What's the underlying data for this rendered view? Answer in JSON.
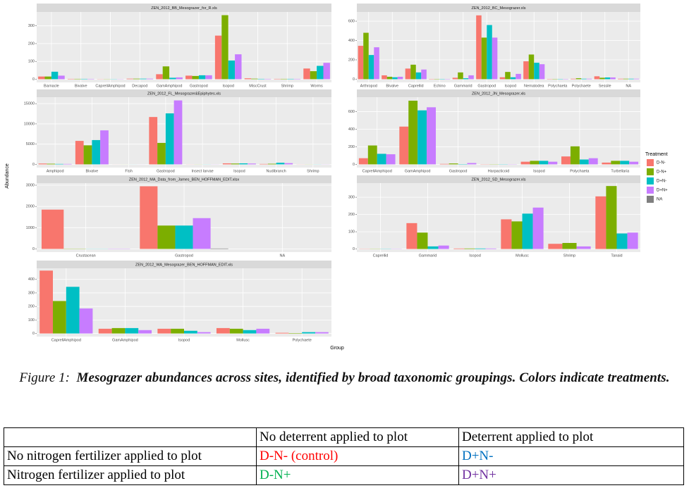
{
  "chart_data": [
    {
      "type": "bar",
      "title": "ZEN_2012_BB_Mesograzer_for_R.xls",
      "categories": [
        "Barnacle",
        "Bivalve",
        "CaprellAmphipod",
        "Decapod",
        "GamAmphipod",
        "Gastropod",
        "Isopod",
        "MiscCrust",
        "Shrimp",
        "Worms"
      ],
      "series": [
        {
          "values": [
            15,
            2,
            1,
            3,
            28,
            20,
            245,
            5,
            2,
            60
          ]
        },
        {
          "values": [
            15,
            2,
            1,
            3,
            72,
            18,
            360,
            3,
            2,
            45
          ]
        },
        {
          "values": [
            42,
            2,
            1,
            3,
            8,
            22,
            105,
            2,
            2,
            75
          ]
        },
        {
          "values": [
            20,
            2,
            1,
            3,
            10,
            22,
            140,
            2,
            2,
            92
          ]
        },
        {
          "values": [
            null,
            null,
            null,
            null,
            null,
            null,
            null,
            null,
            null,
            null
          ]
        }
      ],
      "ylim": [
        -18,
        378
      ],
      "yticks": [
        0,
        100,
        200,
        300
      ]
    },
    {
      "type": "bar",
      "title": "ZEN_2012_BC_Mesograzer.xls",
      "categories": [
        "Arthropod",
        "Bivalve",
        "Caprellid",
        "Echino",
        "Gammarid",
        "Gastropod",
        "Isopod",
        "Nematodea",
        "Polychaeta",
        "Polychaete",
        "Sessile",
        "NA"
      ],
      "series": [
        {
          "values": [
            345,
            40,
            110,
            3,
            15,
            660,
            20,
            185,
            3,
            5,
            30,
            5
          ]
        },
        {
          "values": [
            480,
            25,
            150,
            3,
            70,
            430,
            75,
            255,
            3,
            10,
            15,
            5
          ]
        },
        {
          "values": [
            250,
            20,
            70,
            3,
            10,
            560,
            20,
            170,
            3,
            5,
            18,
            5
          ]
        },
        {
          "values": [
            330,
            25,
            100,
            3,
            40,
            430,
            55,
            155,
            3,
            5,
            18,
            5
          ]
        },
        {
          "values": [
            null,
            null,
            null,
            null,
            null,
            null,
            null,
            null,
            null,
            null,
            null,
            null
          ]
        }
      ],
      "ylim": [
        -33,
        695
      ],
      "yticks": [
        0,
        200,
        400,
        600
      ]
    },
    {
      "type": "bar",
      "title": "ZEN_2012_FL_Mesograzer&Epiphytes.xls",
      "categories": [
        "Amphipod",
        "Bivalve",
        "Fish",
        "Gastropod",
        "Insect larvae",
        "Isopod",
        "Nudibranch",
        "Shrimp"
      ],
      "series": [
        {
          "values": [
            200,
            5800,
            10,
            11700,
            20,
            250,
            100,
            20
          ]
        },
        {
          "values": [
            150,
            4700,
            10,
            5300,
            20,
            200,
            150,
            20
          ]
        },
        {
          "values": [
            100,
            6000,
            10,
            12600,
            20,
            250,
            400,
            20
          ]
        },
        {
          "values": [
            100,
            8400,
            10,
            15800,
            20,
            200,
            300,
            20
          ]
        },
        {
          "values": [
            null,
            null,
            null,
            null,
            null,
            null,
            null,
            null
          ]
        }
      ],
      "ylim": [
        -800,
        16600
      ],
      "yticks": [
        0,
        5000,
        10000,
        15000
      ]
    },
    {
      "type": "bar",
      "title": "ZEN_2012_JN_Mesograzer.xls",
      "categories": [
        "CaprellAmphipod",
        "GamAmphipod",
        "Gastropod",
        "Harpacticoid",
        "Isopod",
        "Polychaeta",
        "Turbellaria"
      ],
      "series": [
        {
          "values": [
            70,
            430,
            5,
            2,
            30,
            90,
            20
          ]
        },
        {
          "values": [
            215,
            725,
            10,
            2,
            40,
            205,
            40
          ]
        },
        {
          "values": [
            120,
            615,
            3,
            2,
            40,
            55,
            40
          ]
        },
        {
          "values": [
            115,
            650,
            15,
            2,
            30,
            70,
            30
          ]
        },
        {
          "values": [
            null,
            null,
            null,
            null,
            null,
            null,
            null
          ]
        }
      ],
      "ylim": [
        -37,
        765
      ],
      "yticks": [
        0,
        200,
        400,
        600
      ]
    },
    {
      "type": "bar",
      "title": "ZEN_2012_MA_Data_from_James_BEN_HOFFMAN_EDIT.xlsx",
      "categories": [
        "Crustacean",
        "Gastropod",
        "NA"
      ],
      "series": [
        {
          "values": [
            1850,
            2950,
            null
          ]
        },
        {
          "values": [
            10,
            1100,
            null
          ]
        },
        {
          "values": [
            5,
            1100,
            null
          ]
        },
        {
          "values": [
            10,
            1450,
            null
          ]
        },
        {
          "values": [
            null,
            20,
            null
          ]
        }
      ],
      "ylim": [
        -150,
        3100
      ],
      "yticks": [
        0,
        1000,
        2000,
        3000
      ]
    },
    {
      "type": "bar",
      "title": "ZEN_2012_SD_Mesograzer.xls",
      "categories": [
        "Caprellid",
        "Gammarid",
        "Isopod",
        "Mollusc",
        "Shrimp",
        "Tanaid"
      ],
      "series": [
        {
          "values": [
            1,
            150,
            3,
            172,
            30,
            305
          ]
        },
        {
          "values": [
            1,
            95,
            3,
            160,
            35,
            365
          ]
        },
        {
          "values": [
            1,
            15,
            3,
            205,
            null,
            90
          ]
        },
        {
          "values": [
            1,
            20,
            3,
            240,
            15,
            95
          ]
        },
        {
          "values": [
            null,
            null,
            null,
            null,
            null,
            null
          ]
        }
      ],
      "ylim": [
        -18,
        382
      ],
      "yticks": [
        0,
        100,
        200,
        300
      ]
    },
    {
      "type": "bar",
      "title": "ZEN_2012_WA_Mesograzer_BEN_HOFFMAN_EDIT.xls",
      "categories": [
        "CaprellAmphipod",
        "GamAmphipod",
        "Isopod",
        "Mollusc",
        "Polychaete"
      ],
      "series": [
        {
          "values": [
            465,
            35,
            35,
            40,
            5
          ]
        },
        {
          "values": [
            240,
            40,
            35,
            35,
            3
          ]
        },
        {
          "values": [
            345,
            40,
            20,
            25,
            10
          ]
        },
        {
          "values": [
            185,
            25,
            10,
            35,
            10
          ]
        },
        {
          "values": [
            null,
            null,
            null,
            null,
            null
          ]
        }
      ],
      "ylim": [
        -23,
        482
      ],
      "yticks": [
        0,
        100,
        200,
        300,
        400
      ]
    }
  ],
  "axes": {
    "y_label": "Abundance",
    "x_label": "Group"
  },
  "legend": {
    "title": "Treatment",
    "entries": [
      {
        "name": "D-N-",
        "color": "#F8766D"
      },
      {
        "name": "D-N+",
        "color": "#7CAE00"
      },
      {
        "name": "D+N-",
        "color": "#00BFC4"
      },
      {
        "name": "D+N+",
        "color": "#C77CFF"
      },
      {
        "name": "NA",
        "color": "#7F7F7F"
      }
    ]
  },
  "caption": {
    "label": "Figure 1:",
    "text": "Mesograzer abundances across sites, identified by broad taxonomic groupings. Colors indicate treatments."
  },
  "table": {
    "header": [
      "No deterrent applied to plot",
      "Deterrent applied to plot"
    ],
    "rows": [
      {
        "label": "No nitrogen fertilizer applied to plot",
        "cells": [
          {
            "text": "D-N- (control)",
            "color": "#FF0000"
          },
          {
            "text": "D+N-",
            "color": "#0070C0"
          }
        ]
      },
      {
        "label": "Nitrogen fertilizer applied to plot",
        "cells": [
          {
            "text": "D-N+",
            "color": "#00B050"
          },
          {
            "text": "D+N+",
            "color": "#7030A0"
          }
        ]
      }
    ]
  }
}
